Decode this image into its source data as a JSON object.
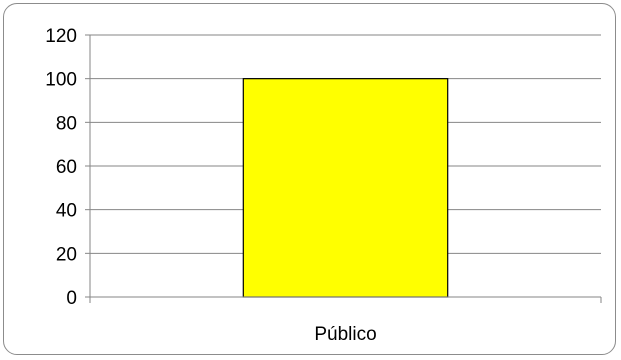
{
  "chart_data": {
    "type": "bar",
    "categories": [
      "Público"
    ],
    "values": [
      100
    ],
    "ylim": [
      0,
      120
    ],
    "yticks": [
      0,
      20,
      40,
      60,
      80,
      100,
      120
    ],
    "grid": true,
    "bar_color": "#FFFF00",
    "bar_border_color": "#000000",
    "grid_color": "#868686"
  }
}
